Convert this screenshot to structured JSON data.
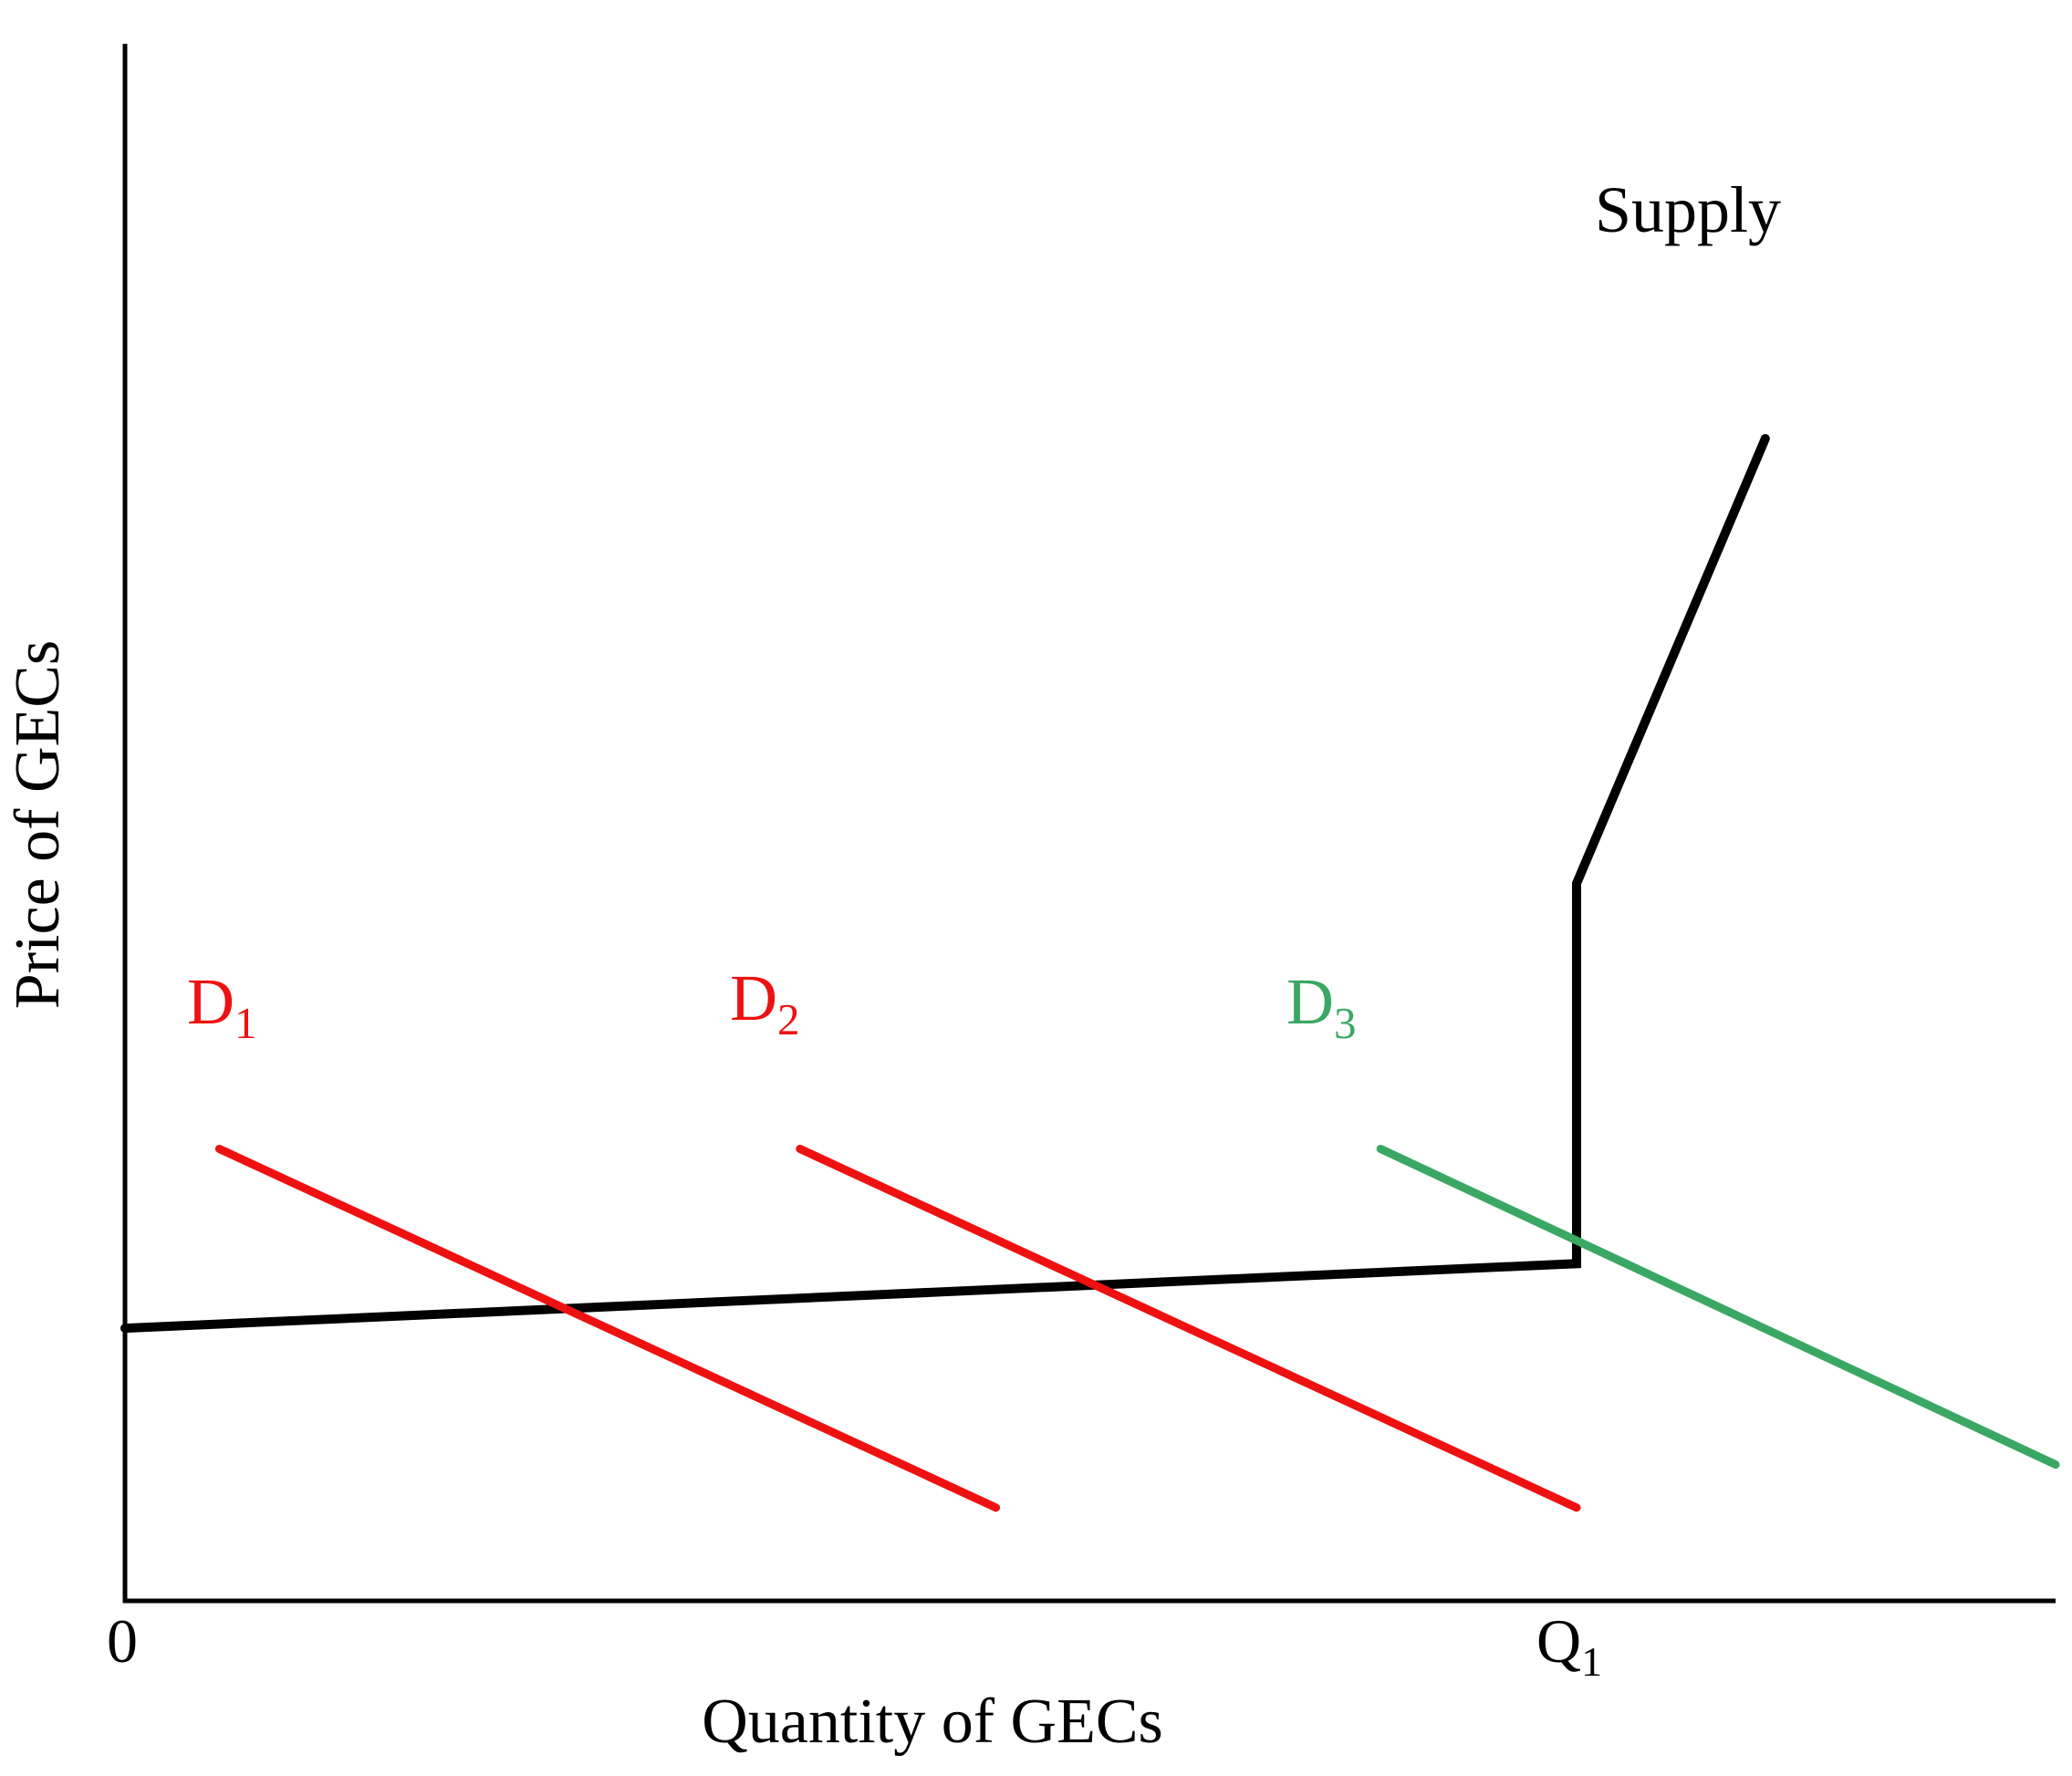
{
  "chart_data": {
    "type": "line",
    "title": "",
    "xlabel": "Quantity of GECs",
    "ylabel": "Price of GECs",
    "x_tick_labels": [
      {
        "base": "0",
        "sub": "",
        "value": 0
      },
      {
        "base": "Q",
        "sub": "1",
        "value": 100
      }
    ],
    "xlim": [
      0,
      133
    ],
    "ylim": [
      0,
      100
    ],
    "grid": false,
    "series": [
      {
        "name": "Supply",
        "label_base": "Supply",
        "label_sub": "",
        "color": "#000000",
        "points": [
          [
            0,
            19
          ],
          [
            100,
            23.5
          ],
          [
            100,
            50
          ],
          [
            113,
            81
          ]
        ]
      },
      {
        "name": "D1",
        "label_base": "D",
        "label_sub": "1",
        "color": "#ee1111",
        "points": [
          [
            6.5,
            31.5
          ],
          [
            60,
            6.5
          ]
        ]
      },
      {
        "name": "D2",
        "label_base": "D",
        "label_sub": "2",
        "color": "#ee1111",
        "points": [
          [
            46.5,
            31.5
          ],
          [
            100,
            6.5
          ]
        ]
      },
      {
        "name": "D3",
        "label_base": "D",
        "label_sub": "3",
        "color": "#3aa863",
        "points": [
          [
            86.5,
            31.5
          ],
          [
            133,
            9.5
          ]
        ]
      }
    ]
  }
}
